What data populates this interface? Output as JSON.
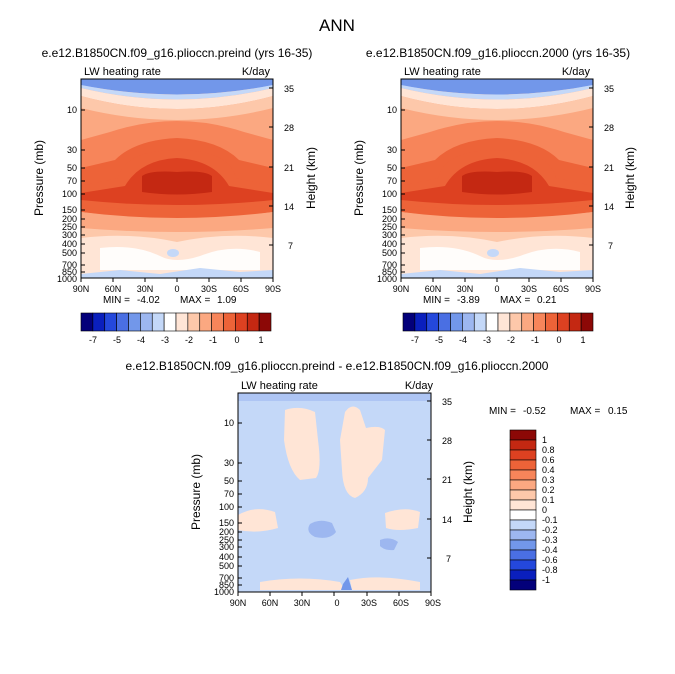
{
  "page_title": "ANN",
  "chart_data": [
    {
      "type": "heatmap",
      "title": "e.e12.B1850CN.f09_g16.plioccn.preind (yrs 16-35)",
      "left_string": "LW heating rate",
      "right_string": "K/day",
      "xlabel": "",
      "ylabel": "Pressure (mb)",
      "y2label": "Height (km)",
      "x_ticks": [
        "90N",
        "60N",
        "30N",
        "0",
        "30S",
        "60S",
        "90S"
      ],
      "x_tick_values": [
        90,
        60,
        30,
        0,
        -30,
        -60,
        -90
      ],
      "xlim": [
        90,
        -90
      ],
      "y_tick_labels": [
        "10",
        "30",
        "50",
        "70",
        "100",
        "150",
        "200",
        "250",
        "300",
        "400",
        "500",
        "700",
        "850",
        "1000"
      ],
      "y_tick_values": [
        10,
        30,
        50,
        70,
        100,
        150,
        200,
        250,
        300,
        400,
        500,
        700,
        850,
        1000
      ],
      "ylim_mb": [
        1000,
        3
      ],
      "y2_tick_labels": [
        "7",
        "14",
        "21",
        "28",
        "35"
      ],
      "y2_tick_km": [
        7,
        14,
        21,
        28,
        35
      ],
      "min_label": "MIN =",
      "min": "-4.02",
      "max_label": "MAX =",
      "max": "1.09",
      "colorbar_labels": [
        "-7",
        "-5",
        "-4",
        "-3",
        "-2",
        "-1",
        "0",
        "1"
      ],
      "colorbar_colors": [
        "#03007a",
        "#0a1fbd",
        "#2448dc",
        "#4a6fe3",
        "#7297ea",
        "#9db7f0",
        "#c4d8f8",
        "#ffffff",
        "#ffe5d6",
        "#fdc8aa",
        "#fba881",
        "#f7855a",
        "#ed6338",
        "#dd4121",
        "#c42812",
        "#8c0806"
      ],
      "contour_levels": [
        -7,
        -6,
        -5,
        -4,
        -3.5,
        -3,
        -2.5,
        -2,
        -1.5,
        -1,
        -0.5,
        0,
        0.5,
        1,
        1.5
      ]
    },
    {
      "type": "heatmap",
      "title": "e.e12.B1850CN.f09_g16.plioccn.2000 (yrs 16-35)",
      "left_string": "LW heating rate",
      "right_string": "K/day",
      "xlabel": "",
      "ylabel": "Pressure (mb)",
      "y2label": "Height (km)",
      "x_ticks": [
        "90N",
        "60N",
        "30N",
        "0",
        "30S",
        "60S",
        "90S"
      ],
      "x_tick_values": [
        90,
        60,
        30,
        0,
        -30,
        -60,
        -90
      ],
      "xlim": [
        90,
        -90
      ],
      "y_tick_labels": [
        "10",
        "30",
        "50",
        "70",
        "100",
        "150",
        "200",
        "250",
        "300",
        "400",
        "500",
        "700",
        "850",
        "1000"
      ],
      "y_tick_values": [
        10,
        30,
        50,
        70,
        100,
        150,
        200,
        250,
        300,
        400,
        500,
        700,
        850,
        1000
      ],
      "ylim_mb": [
        1000,
        3
      ],
      "y2_tick_labels": [
        "7",
        "14",
        "21",
        "28",
        "35"
      ],
      "y2_tick_km": [
        7,
        14,
        21,
        28,
        35
      ],
      "min_label": "MIN =",
      "min": "-3.89",
      "max_label": "MAX =",
      "max": "0.21",
      "colorbar_labels": [
        "-7",
        "-5",
        "-4",
        "-3",
        "-2",
        "-1",
        "0",
        "1"
      ],
      "colorbar_colors": [
        "#03007a",
        "#0a1fbd",
        "#2448dc",
        "#4a6fe3",
        "#7297ea",
        "#9db7f0",
        "#c4d8f8",
        "#ffffff",
        "#ffe5d6",
        "#fdc8aa",
        "#fba881",
        "#f7855a",
        "#ed6338",
        "#dd4121",
        "#c42812",
        "#8c0806"
      ],
      "contour_levels": [
        -7,
        -6,
        -5,
        -4,
        -3.5,
        -3,
        -2.5,
        -2,
        -1.5,
        -1,
        -0.5,
        0,
        0.5,
        1,
        1.5
      ]
    },
    {
      "type": "heatmap",
      "title": "e.e12.B1850CN.f09_g16.plioccn.preind - e.e12.B1850CN.f09_g16.plioccn.2000",
      "left_string": "LW heating rate",
      "right_string": "K/day",
      "xlabel": "",
      "ylabel": "Pressure (mb)",
      "y2label": "Height (km)",
      "x_ticks": [
        "90N",
        "60N",
        "30N",
        "0",
        "30S",
        "60S",
        "90S"
      ],
      "x_tick_values": [
        90,
        60,
        30,
        0,
        -30,
        -60,
        -90
      ],
      "xlim": [
        90,
        -90
      ],
      "y_tick_labels": [
        "10",
        "30",
        "50",
        "70",
        "100",
        "150",
        "200",
        "250",
        "300",
        "400",
        "500",
        "700",
        "850",
        "1000"
      ],
      "y_tick_values": [
        10,
        30,
        50,
        70,
        100,
        150,
        200,
        250,
        300,
        400,
        500,
        700,
        850,
        1000
      ],
      "ylim_mb": [
        1000,
        3
      ],
      "y2_tick_labels": [
        "7",
        "14",
        "21",
        "28",
        "35"
      ],
      "y2_tick_km": [
        7,
        14,
        21,
        28,
        35
      ],
      "min_label": "MIN =",
      "min": "-0.52",
      "max_label": "MAX =",
      "max": "0.15",
      "colorbar_labels": [
        "1",
        "0.8",
        "0.6",
        "0.4",
        "0.3",
        "0.2",
        "0.1",
        "0",
        "-0.1",
        "-0.2",
        "-0.3",
        "-0.4",
        "-0.6",
        "-0.8",
        "-1"
      ],
      "colorbar_colors": [
        "#8c0806",
        "#c42812",
        "#dd4121",
        "#ed6338",
        "#f7855a",
        "#fba881",
        "#fdc8aa",
        "#ffe5d6",
        "#ffffff",
        "#c4d8f8",
        "#9db7f0",
        "#7297ea",
        "#4a6fe3",
        "#2448dc",
        "#0a1fbd",
        "#03007a"
      ]
    }
  ]
}
